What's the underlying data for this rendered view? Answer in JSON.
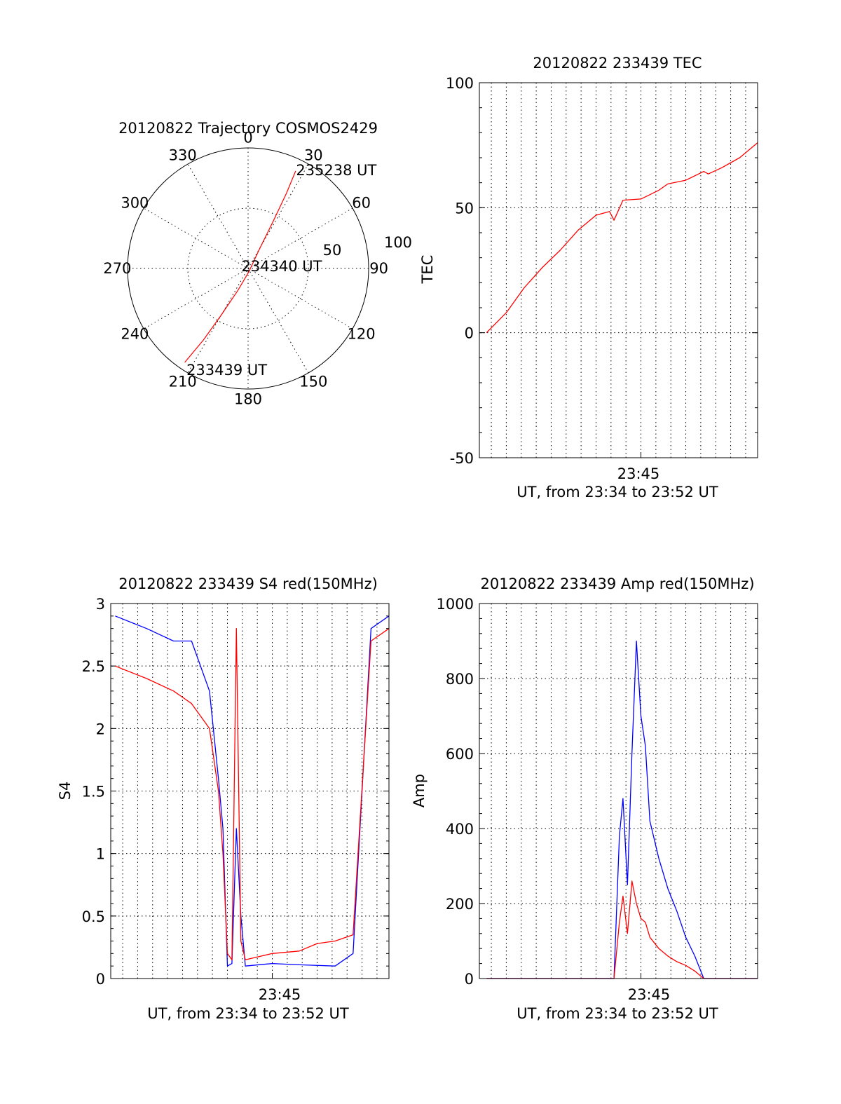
{
  "chart_data": [
    {
      "type": "polar",
      "title": "20120822 Trajectory COSMOS2429",
      "angle_labels": [
        "0",
        "30",
        "60",
        "90",
        "120",
        "150",
        "180",
        "210",
        "240",
        "270",
        "300",
        "330"
      ],
      "radius_labels": [
        "50",
        "100"
      ],
      "rlim": [
        0,
        100
      ],
      "series": [
        {
          "color": "#ff0000",
          "points": [
            {
              "azimuth": 214,
              "zenith": 94
            },
            {
              "azimuth": 212,
              "zenith": 70
            },
            {
              "azimuth": 210,
              "zenith": 45
            },
            {
              "azimuth": 205,
              "zenith": 20
            },
            {
              "azimuth": 170,
              "zenith": 3
            },
            {
              "azimuth": 30,
              "zenith": 20
            },
            {
              "azimuth": 28,
              "zenith": 45
            },
            {
              "azimuth": 27,
              "zenith": 70
            },
            {
              "azimuth": 26,
              "zenith": 90
            }
          ]
        }
      ],
      "annotations": [
        {
          "text": "235238 UT",
          "azimuth": 26,
          "zenith": 90
        },
        {
          "text": "234340 UT",
          "azimuth": 0,
          "zenith": 0
        },
        {
          "text": "233439 UT",
          "azimuth": 214,
          "zenith": 94
        }
      ]
    },
    {
      "type": "line",
      "title": "20120822 233439 TEC",
      "xlabel": "UT, from 23:34 to 23:52 UT",
      "ylabel": "TEC",
      "xlim": [
        23.57,
        23.88
      ],
      "ylim": [
        -50,
        100
      ],
      "yticks": [
        -50,
        0,
        50,
        100
      ],
      "xtick_label": "23:45",
      "grid": true,
      "series": [
        {
          "color": "#ff0000",
          "points": [
            [
              23.578,
              0
            ],
            [
              23.6,
              8
            ],
            [
              23.62,
              18
            ],
            [
              23.64,
              26
            ],
            [
              23.66,
              33
            ],
            [
              23.68,
              41
            ],
            [
              23.7,
              47
            ],
            [
              23.715,
              48.5
            ],
            [
              23.72,
              45
            ],
            [
              23.73,
              53
            ],
            [
              23.75,
              53.5
            ],
            [
              23.77,
              57
            ],
            [
              23.78,
              59.5
            ],
            [
              23.8,
              61
            ],
            [
              23.82,
              64.5
            ],
            [
              23.825,
              63.5
            ],
            [
              23.84,
              66
            ],
            [
              23.86,
              70
            ],
            [
              23.88,
              76
            ]
          ]
        }
      ]
    },
    {
      "type": "line",
      "title": "20120822 233439 S4 red(150MHz)",
      "xlabel": "UT, from 23:34 to 23:52 UT",
      "ylabel": "S4",
      "xlim": [
        23.57,
        23.88
      ],
      "ylim": [
        0,
        3
      ],
      "yticks": [
        0,
        0.5,
        1,
        1.5,
        2,
        2.5,
        3
      ],
      "ytick_labels": [
        "0",
        "0.5",
        "1",
        "1.5",
        "2",
        "2.5",
        "3"
      ],
      "xtick_label": "23:45",
      "grid": true,
      "series": [
        {
          "color": "#0000ff",
          "points": [
            [
              23.575,
              2.9
            ],
            [
              23.61,
              2.8
            ],
            [
              23.64,
              2.7
            ],
            [
              23.66,
              2.7
            ],
            [
              23.68,
              2.3
            ],
            [
              23.69,
              1.6
            ],
            [
              23.695,
              1.2
            ],
            [
              23.7,
              0.1
            ],
            [
              23.705,
              0.12
            ],
            [
              23.71,
              1.2
            ],
            [
              23.715,
              0.5
            ],
            [
              23.72,
              0.1
            ],
            [
              23.75,
              0.12
            ],
            [
              23.78,
              0.11
            ],
            [
              23.82,
              0.1
            ],
            [
              23.84,
              0.2
            ],
            [
              23.86,
              2.8
            ],
            [
              23.88,
              2.9
            ]
          ]
        },
        {
          "color": "#ff0000",
          "points": [
            [
              23.575,
              2.5
            ],
            [
              23.61,
              2.4
            ],
            [
              23.64,
              2.3
            ],
            [
              23.66,
              2.2
            ],
            [
              23.68,
              2.0
            ],
            [
              23.69,
              1.5
            ],
            [
              23.695,
              1.0
            ],
            [
              23.7,
              0.2
            ],
            [
              23.705,
              0.15
            ],
            [
              23.71,
              2.8
            ],
            [
              23.715,
              0.3
            ],
            [
              23.72,
              0.15
            ],
            [
              23.75,
              0.2
            ],
            [
              23.78,
              0.22
            ],
            [
              23.8,
              0.28
            ],
            [
              23.82,
              0.3
            ],
            [
              23.84,
              0.35
            ],
            [
              23.86,
              2.7
            ],
            [
              23.88,
              2.8
            ]
          ]
        }
      ]
    },
    {
      "type": "line",
      "title": "20120822 233439 Amp red(150MHz)",
      "xlabel": "UT, from 23:34 to 23:52 UT",
      "ylabel": "Amp",
      "xlim": [
        23.57,
        23.88
      ],
      "ylim": [
        0,
        1000
      ],
      "yticks": [
        0,
        200,
        400,
        600,
        800,
        1000
      ],
      "xtick_label": "23:45",
      "grid": true,
      "series": [
        {
          "color": "#0000ff",
          "points": [
            [
              23.578,
              0
            ],
            [
              23.72,
              0
            ],
            [
              23.726,
              380
            ],
            [
              23.73,
              480
            ],
            [
              23.735,
              250
            ],
            [
              23.74,
              600
            ],
            [
              23.745,
              900
            ],
            [
              23.75,
              700
            ],
            [
              23.755,
              620
            ],
            [
              23.76,
              420
            ],
            [
              23.77,
              320
            ],
            [
              23.78,
              240
            ],
            [
              23.79,
              180
            ],
            [
              23.8,
              110
            ],
            [
              23.81,
              60
            ],
            [
              23.815,
              30
            ],
            [
              23.82,
              0
            ],
            [
              23.88,
              0
            ]
          ]
        },
        {
          "color": "#ff0000",
          "points": [
            [
              23.578,
              0
            ],
            [
              23.72,
              0
            ],
            [
              23.726,
              150
            ],
            [
              23.73,
              220
            ],
            [
              23.735,
              120
            ],
            [
              23.74,
              260
            ],
            [
              23.745,
              200
            ],
            [
              23.75,
              160
            ],
            [
              23.755,
              150
            ],
            [
              23.76,
              110
            ],
            [
              23.77,
              80
            ],
            [
              23.78,
              60
            ],
            [
              23.79,
              45
            ],
            [
              23.8,
              35
            ],
            [
              23.81,
              20
            ],
            [
              23.815,
              10
            ],
            [
              23.82,
              0
            ],
            [
              23.88,
              0
            ]
          ]
        }
      ]
    }
  ]
}
